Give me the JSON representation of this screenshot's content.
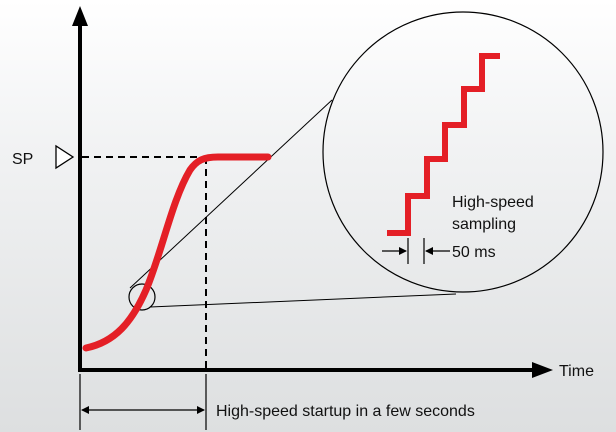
{
  "labels": {
    "sp": "SP",
    "time": "Time",
    "zoom_line1": "High-speed",
    "zoom_line2": "sampling",
    "sample_interval": "50 ms",
    "startup": "High-speed startup in a few seconds"
  },
  "colors": {
    "curve": "#e41f26",
    "axis": "#000000",
    "background_top": "#ffffff",
    "background_bottom": "#dddfe0"
  },
  "icons": {
    "setpoint_marker": "triangle-right-outline"
  }
}
